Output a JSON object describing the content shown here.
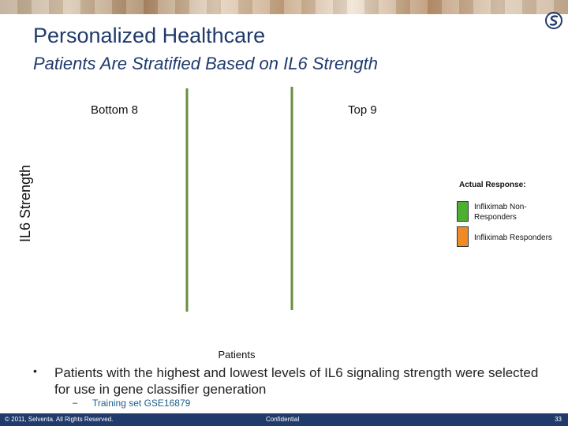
{
  "slide": {
    "title": "Personalized Healthcare",
    "subtitle": "Patients Are Stratified Based on IL6 Strength"
  },
  "chart_data": {
    "type": "bar",
    "title": "",
    "xlabel": "Patients",
    "ylabel": "IL6 Strength",
    "groups": [
      {
        "label": "Bottom 8"
      },
      {
        "label": "Top 9"
      }
    ],
    "legend": {
      "title": "Actual Response:",
      "placement": "right",
      "entries": [
        {
          "name": "Infliximab Non-Responders",
          "color": "#4caf2f"
        },
        {
          "name": "Infliximab Responders",
          "color": "#f08a24"
        }
      ]
    },
    "divider_color": "#6b8e3e"
  },
  "bullets": [
    {
      "text": "Patients with the highest and lowest levels of IL6 signaling strength were selected for use in gene classifier generation",
      "sub": "Training set GSE16879"
    }
  ],
  "footer": {
    "copyright": "© 2011, Selventa. All Rights Reserved.",
    "confidential": "Confidential",
    "page": "33"
  },
  "logo": {
    "icon": "selventa-logo-icon",
    "color": "#1f3a6b"
  }
}
